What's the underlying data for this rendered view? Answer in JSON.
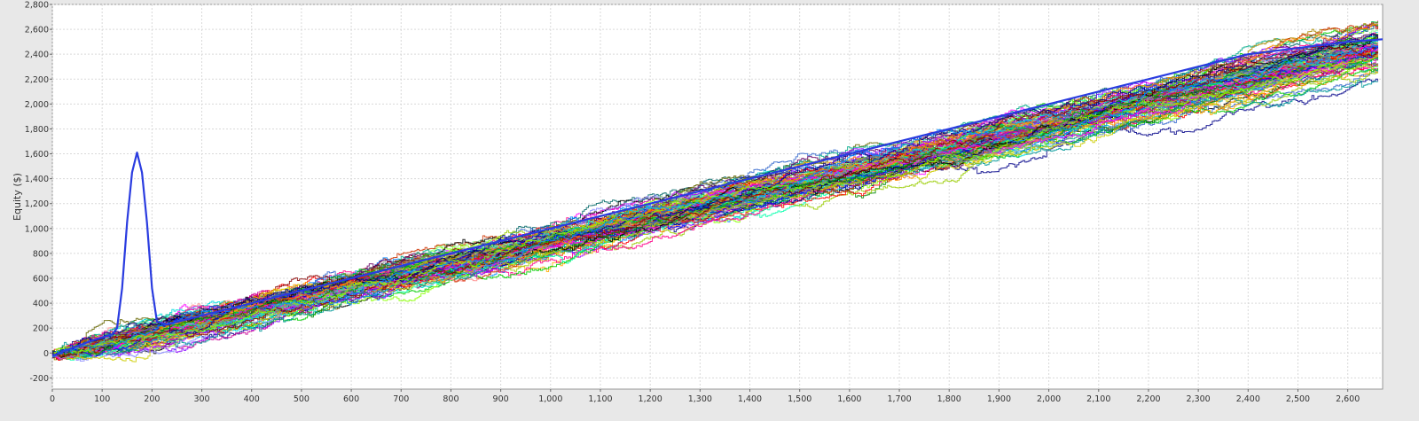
{
  "chart_data": {
    "type": "line",
    "title": "",
    "xlabel": "",
    "ylabel": "Equity ($)",
    "xlim": [
      0,
      2670
    ],
    "ylim": [
      -290,
      2800
    ],
    "x_ticks": [
      0,
      100,
      200,
      300,
      400,
      500,
      600,
      700,
      800,
      900,
      1000,
      1100,
      1200,
      1300,
      1400,
      1500,
      1600,
      1700,
      1800,
      1900,
      2000,
      2100,
      2200,
      2300,
      2400,
      2500,
      2600
    ],
    "x_tick_labels": [
      "0",
      "100",
      "200",
      "300",
      "400",
      "500",
      "600",
      "700",
      "800",
      "900",
      "1,000",
      "1,100",
      "1,200",
      "1,300",
      "1,400",
      "1,500",
      "1,600",
      "1,700",
      "1,800",
      "1,900",
      "2,000",
      "2,100",
      "2,200",
      "2,300",
      "2,400",
      "2,500",
      "2,600"
    ],
    "y_ticks": [
      -200,
      0,
      200,
      400,
      600,
      800,
      1000,
      1200,
      1400,
      1600,
      1800,
      2000,
      2200,
      2400,
      2600,
      2800
    ],
    "y_tick_labels": [
      "-200",
      "0",
      "200",
      "400",
      "600",
      "800",
      "1,000",
      "1,200",
      "1,400",
      "1,600",
      "1,800",
      "2,000",
      "2,200",
      "2,400",
      "2,600",
      "2,800"
    ],
    "grid": true,
    "legend": "none",
    "background_color": "#ffffff",
    "grid_color": "#d9d9d9",
    "simulation_count": 110,
    "series_colors": [
      "#ff0000",
      "#00cc00",
      "#0000ff",
      "#ff00ff",
      "#00dddd",
      "#cccc00",
      "#000000",
      "#888888",
      "#ff8800",
      "#008800",
      "#880000",
      "#000088",
      "#88ff00",
      "#0088ff",
      "#ff0088",
      "#8800ff",
      "#00aa88",
      "#aa8800",
      "#ff8888",
      "#8888ff",
      "#88ff88",
      "#006666",
      "#666600",
      "#660066",
      "#ffaa00",
      "#00ffaa",
      "#aa00ff",
      "#cc3300",
      "#3366cc",
      "#99cc00",
      "#cc0099",
      "#009999"
    ],
    "series": [
      {
        "color": "#2a3ce0",
        "points": [
          [
            0,
            -25
          ],
          [
            20,
            10
          ],
          [
            40,
            40
          ],
          [
            60,
            70
          ],
          [
            80,
            100
          ],
          [
            100,
            125
          ],
          [
            120,
            150
          ],
          [
            130,
            200
          ],
          [
            140,
            520
          ],
          [
            150,
            1050
          ],
          [
            160,
            1450
          ],
          [
            170,
            1610
          ],
          [
            180,
            1450
          ],
          [
            190,
            1050
          ],
          [
            200,
            520
          ],
          [
            210,
            250
          ],
          [
            230,
            230
          ],
          [
            300,
            300
          ],
          [
            400,
            400
          ],
          [
            500,
            500
          ],
          [
            600,
            600
          ],
          [
            700,
            700
          ],
          [
            800,
            800
          ],
          [
            900,
            900
          ],
          [
            1000,
            1000
          ],
          [
            1100,
            1100
          ],
          [
            1200,
            1200
          ],
          [
            1300,
            1300
          ],
          [
            1400,
            1400
          ],
          [
            1500,
            1500
          ],
          [
            1600,
            1600
          ],
          [
            1700,
            1700
          ],
          [
            1800,
            1800
          ],
          [
            1900,
            1900
          ],
          [
            2000,
            2000
          ],
          [
            2100,
            2100
          ],
          [
            2200,
            2200
          ],
          [
            2300,
            2300
          ],
          [
            2400,
            2400
          ],
          [
            2500,
            2450
          ],
          [
            2600,
            2500
          ],
          [
            2670,
            2520
          ]
        ]
      }
    ]
  }
}
